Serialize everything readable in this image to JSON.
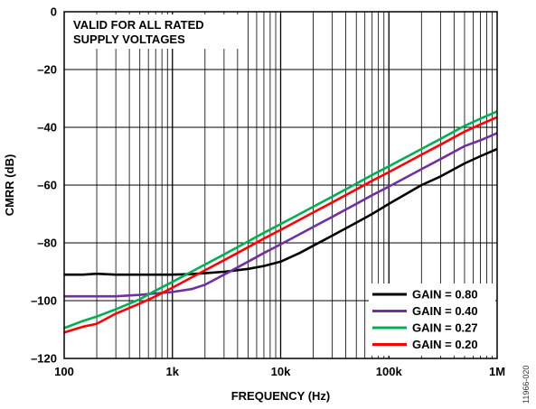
{
  "figure_id": "11966-020",
  "chart_data": {
    "type": "line",
    "title": "",
    "xlabel": "FREQUENCY (Hz)",
    "ylabel": "CMRR (dB)",
    "xscale": "log",
    "xlim": [
      100,
      1000000
    ],
    "ylim": [
      -120,
      0
    ],
    "grid": true,
    "x_ticks": [
      {
        "value": 100,
        "label": "100"
      },
      {
        "value": 1000,
        "label": "1k"
      },
      {
        "value": 10000,
        "label": "10k"
      },
      {
        "value": 100000,
        "label": "100k"
      },
      {
        "value": 1000000,
        "label": "1M"
      }
    ],
    "y_ticks": [
      {
        "value": 0,
        "label": "0"
      },
      {
        "value": -20,
        "label": "–20"
      },
      {
        "value": -40,
        "label": "–40"
      },
      {
        "value": -60,
        "label": "–60"
      },
      {
        "value": -80,
        "label": "–80"
      },
      {
        "value": -100,
        "label": "–100"
      },
      {
        "value": -120,
        "label": "–120"
      }
    ],
    "annotation": [
      "VALID FOR ALL RATED",
      "SUPPLY VOLTAGES"
    ],
    "legend_position": "bottom-right",
    "series": [
      {
        "name": "GAIN = 0.80",
        "color": "#000000",
        "x": [
          100,
          150,
          200,
          300,
          500,
          700,
          1000,
          1500,
          2000,
          3000,
          5000,
          7000,
          10000,
          15000,
          20000,
          30000,
          50000,
          70000,
          100000,
          200000,
          300000,
          500000,
          700000,
          1000000
        ],
        "y": [
          -91,
          -91,
          -90.7,
          -91,
          -91,
          -91,
          -91,
          -90.8,
          -90.5,
          -90,
          -89,
          -88,
          -86.5,
          -83.5,
          -81,
          -77.5,
          -73,
          -70,
          -66.5,
          -60,
          -57,
          -52.5,
          -50,
          -47.5
        ]
      },
      {
        "name": "GAIN = 0.40",
        "color": "#7030a0",
        "x": [
          100,
          150,
          200,
          300,
          500,
          700,
          1000,
          1500,
          2000,
          3000,
          5000,
          7000,
          10000,
          15000,
          20000,
          30000,
          50000,
          70000,
          100000,
          200000,
          300000,
          500000,
          700000,
          1000000
        ],
        "y": [
          -98.5,
          -98.5,
          -98.5,
          -98.5,
          -98,
          -97.5,
          -97,
          -96,
          -94.5,
          -91,
          -86.5,
          -83.5,
          -80.5,
          -77,
          -74.5,
          -71,
          -66.5,
          -63.5,
          -60.5,
          -54.5,
          -51,
          -46.5,
          -44.5,
          -42
        ]
      },
      {
        "name": "GAIN = 0.27",
        "color": "#00b050",
        "x": [
          100,
          150,
          200,
          300,
          500,
          700,
          1000,
          1500,
          2000,
          3000,
          5000,
          7000,
          10000,
          15000,
          20000,
          30000,
          50000,
          70000,
          100000,
          200000,
          300000,
          500000,
          700000,
          1000000
        ],
        "y": [
          -109.5,
          -107,
          -105.5,
          -103,
          -99.5,
          -96.5,
          -93.5,
          -90,
          -87.5,
          -84,
          -79.5,
          -76.5,
          -73.5,
          -70,
          -67.5,
          -64,
          -59.5,
          -56.5,
          -53.5,
          -47.5,
          -44,
          -39.5,
          -37,
          -34.5
        ]
      },
      {
        "name": "GAIN = 0.20",
        "color": "#ff0000",
        "x": [
          100,
          150,
          200,
          300,
          500,
          700,
          1000,
          1500,
          2000,
          3000,
          5000,
          7000,
          10000,
          15000,
          20000,
          30000,
          50000,
          70000,
          100000,
          200000,
          300000,
          500000,
          700000,
          1000000
        ],
        "y": [
          -111,
          -109,
          -108,
          -104.5,
          -101,
          -98.5,
          -95.5,
          -92,
          -89.5,
          -86,
          -81.5,
          -78.5,
          -75.5,
          -72,
          -69.5,
          -66,
          -61.5,
          -58.5,
          -55.5,
          -49.5,
          -46,
          -41.5,
          -39,
          -36.5
        ]
      }
    ]
  }
}
